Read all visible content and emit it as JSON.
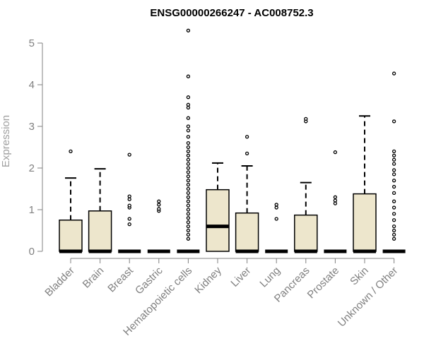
{
  "chart_data": {
    "type": "boxplot",
    "title": "ENSG00000266247 - AC008752.3",
    "ylabel": "Expression",
    "xlabel": "",
    "ylim": [
      0,
      5.3
    ],
    "yticks": [
      0,
      1,
      2,
      3,
      4,
      5
    ],
    "grid": false,
    "box_color": "#ede6cc",
    "categories": [
      "Bladder",
      "Brain",
      "Breast",
      "Gastric",
      "Hematopoietic cells",
      "Kidney",
      "Liver",
      "Lung",
      "Pancreas",
      "Prostate",
      "Skin",
      "Unknown / Other"
    ],
    "boxes": [
      {
        "q1": 0,
        "median": 0,
        "q3": 0.75,
        "whisker_low": 0,
        "whisker_high": 1.76,
        "outliers": [
          2.4
        ]
      },
      {
        "q1": 0,
        "median": 0,
        "q3": 0.97,
        "whisker_low": 0,
        "whisker_high": 1.98,
        "outliers": []
      },
      {
        "q1": 0,
        "median": 0,
        "q3": 0,
        "whisker_low": 0,
        "whisker_high": 0,
        "outliers": [
          0.65,
          0.78,
          1.05,
          1.1,
          1.25,
          1.32,
          2.32
        ]
      },
      {
        "q1": 0,
        "median": 0,
        "q3": 0,
        "whisker_low": 0,
        "whisker_high": 0,
        "outliers": [
          0.97,
          1.02,
          1.12,
          1.2
        ]
      },
      {
        "q1": 0,
        "median": 0,
        "q3": 0,
        "whisker_low": 0,
        "whisker_high": 0,
        "outliers": [
          0.3,
          0.4,
          0.5,
          0.6,
          0.7,
          0.8,
          0.9,
          1.0,
          1.1,
          1.2,
          1.3,
          1.4,
          1.5,
          1.6,
          1.7,
          1.8,
          1.9,
          2.0,
          2.1,
          2.2,
          2.3,
          2.4,
          2.5,
          2.6,
          2.75,
          2.9,
          3.0,
          3.2,
          3.45,
          3.52,
          3.7,
          4.2,
          5.3
        ]
      },
      {
        "q1": 0,
        "median": 0.6,
        "q3": 1.48,
        "whisker_low": 0,
        "whisker_high": 2.12,
        "outliers": []
      },
      {
        "q1": 0,
        "median": 0,
        "q3": 0.92,
        "whisker_low": 0,
        "whisker_high": 2.05,
        "outliers": [
          2.35,
          2.75
        ]
      },
      {
        "q1": 0,
        "median": 0,
        "q3": 0,
        "whisker_low": 0,
        "whisker_high": 0,
        "outliers": [
          0.78,
          1.05,
          1.12
        ]
      },
      {
        "q1": 0,
        "median": 0,
        "q3": 0.87,
        "whisker_low": 0,
        "whisker_high": 1.65,
        "outliers": [
          3.12,
          3.18
        ]
      },
      {
        "q1": 0,
        "median": 0,
        "q3": 0,
        "whisker_low": 0,
        "whisker_high": 0,
        "outliers": [
          1.15,
          1.22,
          1.3,
          2.38
        ]
      },
      {
        "q1": 0,
        "median": 0,
        "q3": 1.38,
        "whisker_low": 0,
        "whisker_high": 3.25,
        "outliers": []
      },
      {
        "q1": 0,
        "median": 0,
        "q3": 0,
        "whisker_low": 0,
        "whisker_high": 0,
        "outliers": [
          0.3,
          0.4,
          0.5,
          0.6,
          0.75,
          0.9,
          1.05,
          1.2,
          1.4,
          1.55,
          1.7,
          1.85,
          1.95,
          2.1,
          2.2,
          2.3,
          2.4,
          3.12,
          4.27
        ]
      }
    ]
  }
}
